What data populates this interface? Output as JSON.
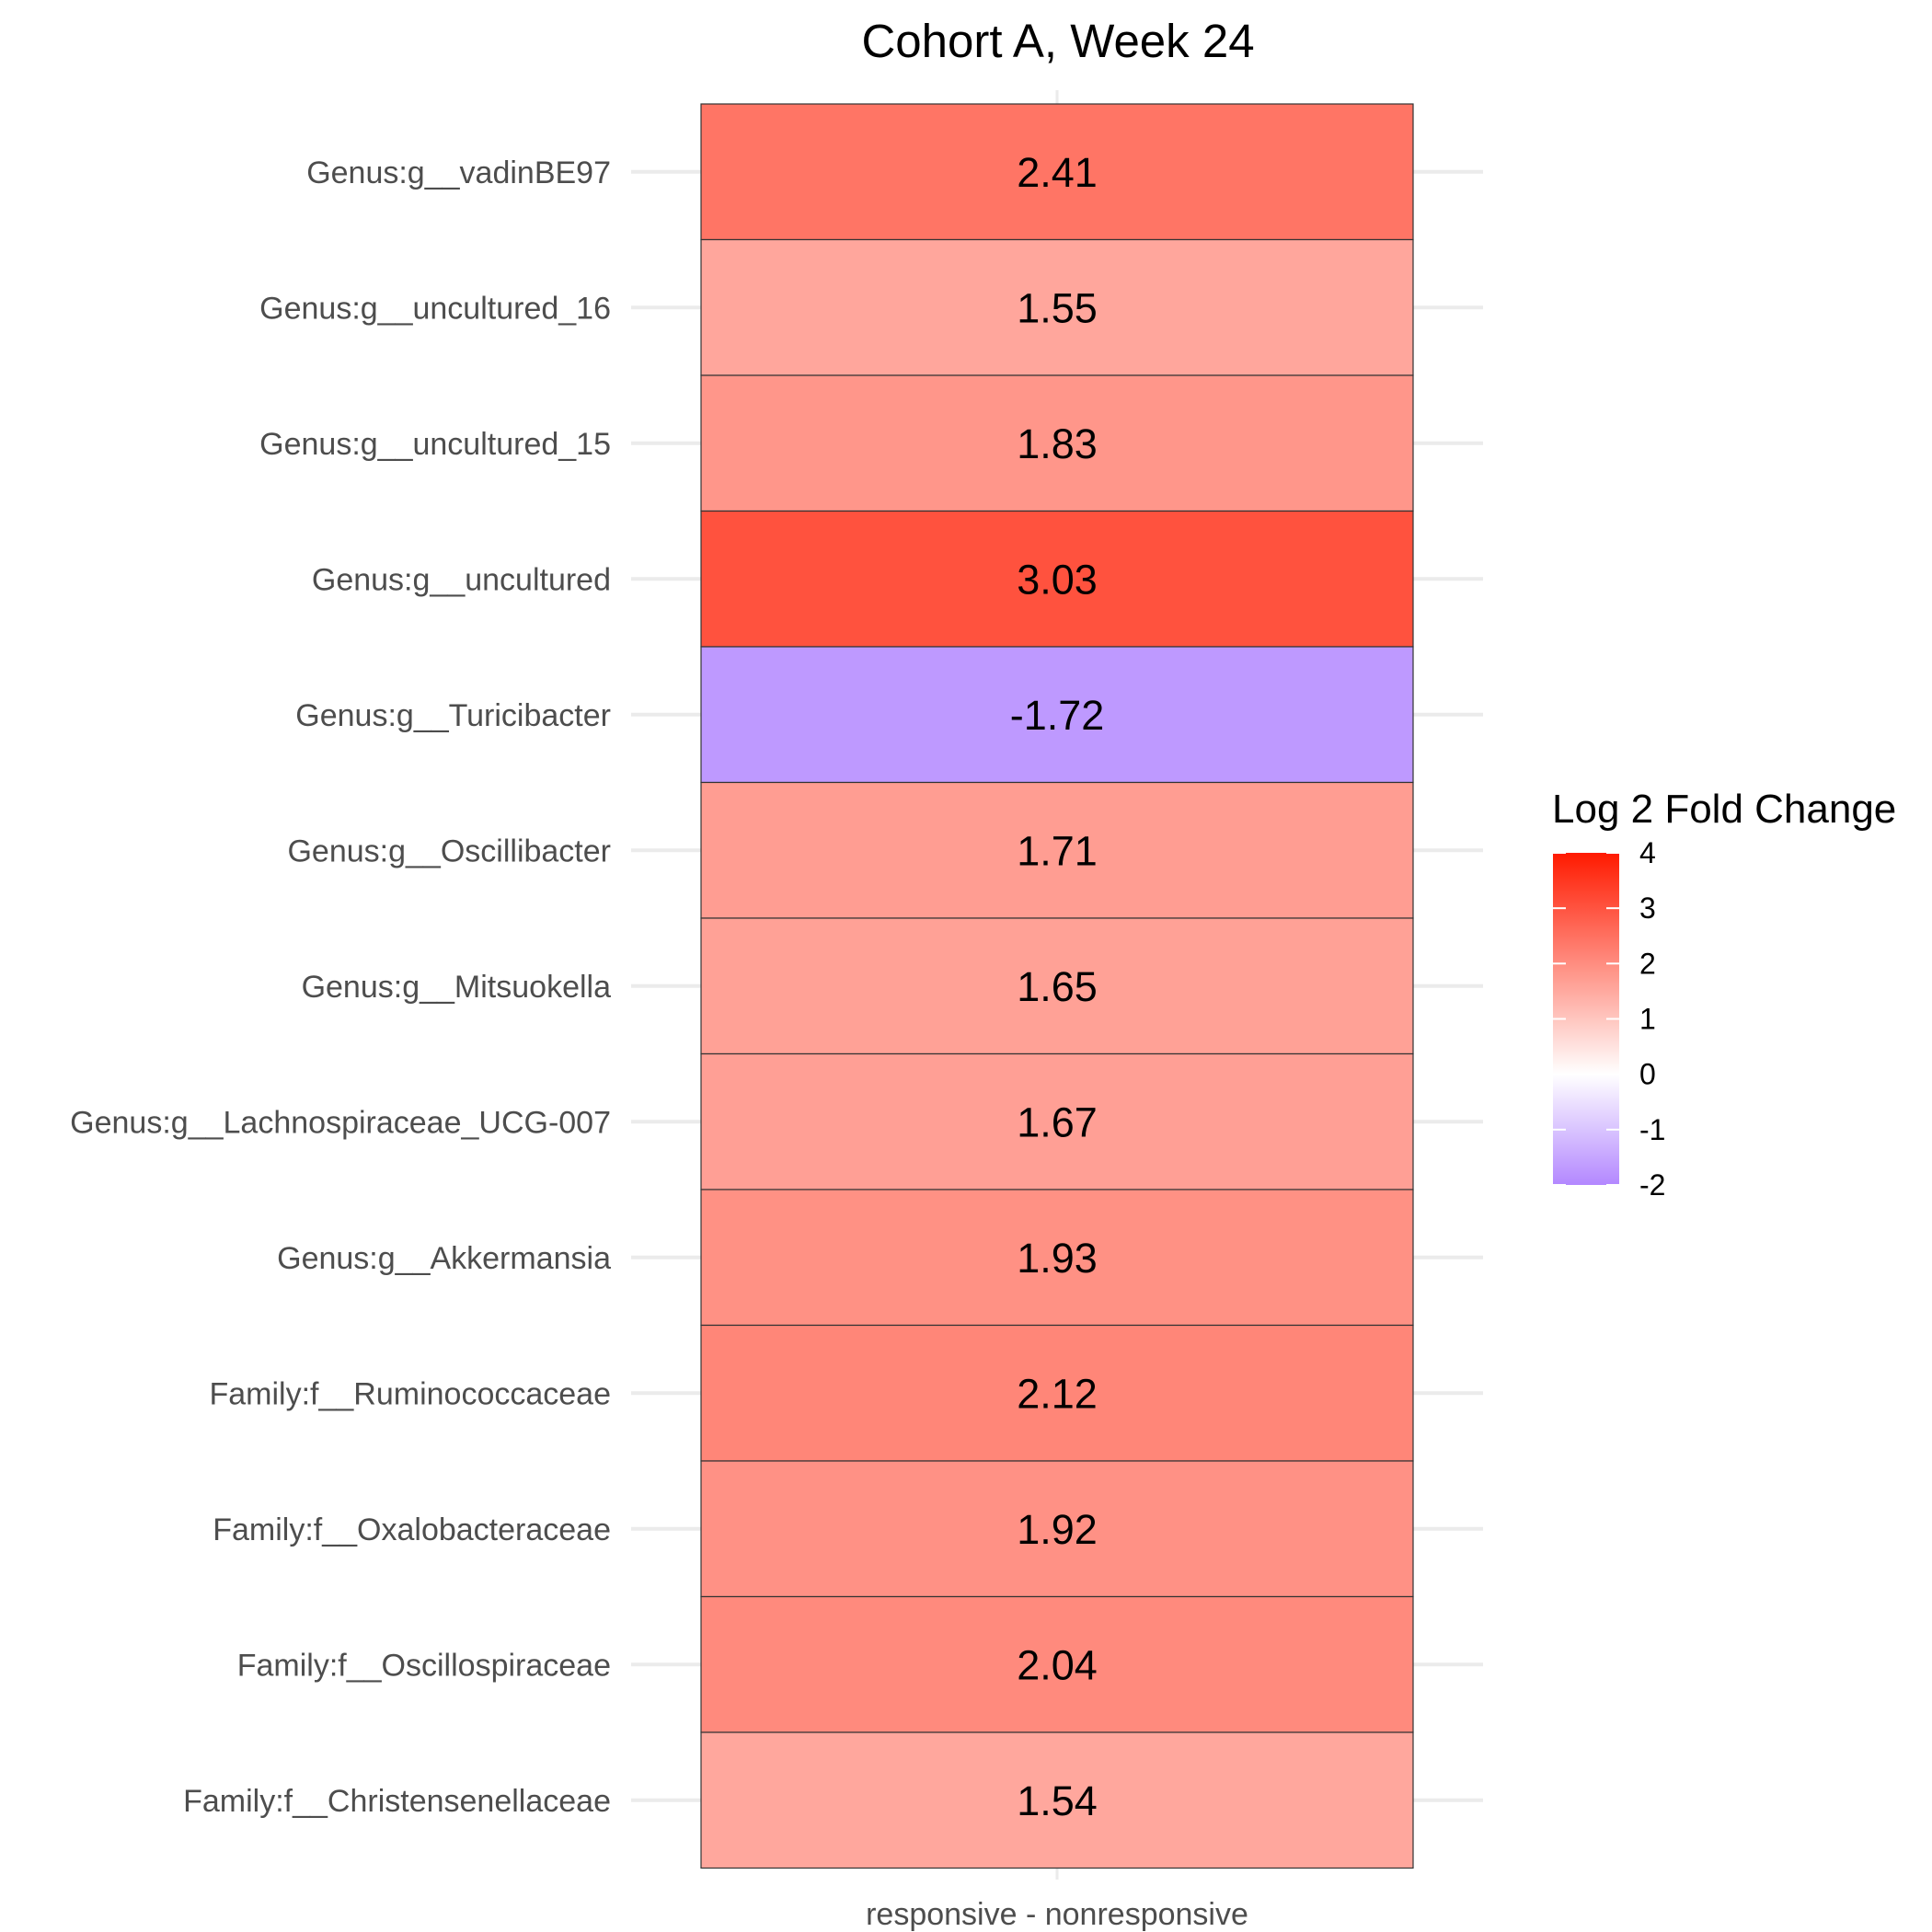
{
  "chart_data": {
    "type": "heatmap",
    "title": "Cohort A, Week 24",
    "xlabel": "",
    "ylabel": "",
    "columns": [
      "responsive - nonresponsive"
    ],
    "rows": [
      "Genus:g__vadinBE97",
      "Genus:g__uncultured_16",
      "Genus:g__uncultured_15",
      "Genus:g__uncultured",
      "Genus:g__Turicibacter",
      "Genus:g__Oscillibacter",
      "Genus:g__Mitsuokella",
      "Genus:g__Lachnospiraceae_UCG-007",
      "Genus:g__Akkermansia",
      "Family:f__Ruminococcaceae",
      "Family:f__Oxalobacteraceae",
      "Family:f__Oscillospiraceae",
      "Family:f__Christensenellaceae"
    ],
    "values": [
      2.41,
      1.55,
      1.83,
      3.03,
      -1.72,
      1.71,
      1.65,
      1.67,
      1.93,
      2.12,
      1.92,
      2.04,
      1.54
    ],
    "cell_labels": [
      "2.41",
      "1.55",
      "1.83",
      "3.03",
      "-1.72",
      "1.71",
      "1.65",
      "1.67",
      "1.93",
      "2.12",
      "1.92",
      "2.04",
      "1.54"
    ],
    "legend": {
      "title": "Log 2 Fold Change",
      "position": "right",
      "range": [
        -2,
        4
      ],
      "ticks": [
        4,
        3,
        2,
        1,
        0,
        -1,
        -2
      ],
      "tick_labels": [
        "4",
        "3",
        "2",
        "1",
        "0",
        "-1",
        "-2"
      ],
      "colors": {
        "low": "#b388ff",
        "mid": "#ffffff",
        "high": "#ff1a00"
      }
    },
    "grid": true
  }
}
